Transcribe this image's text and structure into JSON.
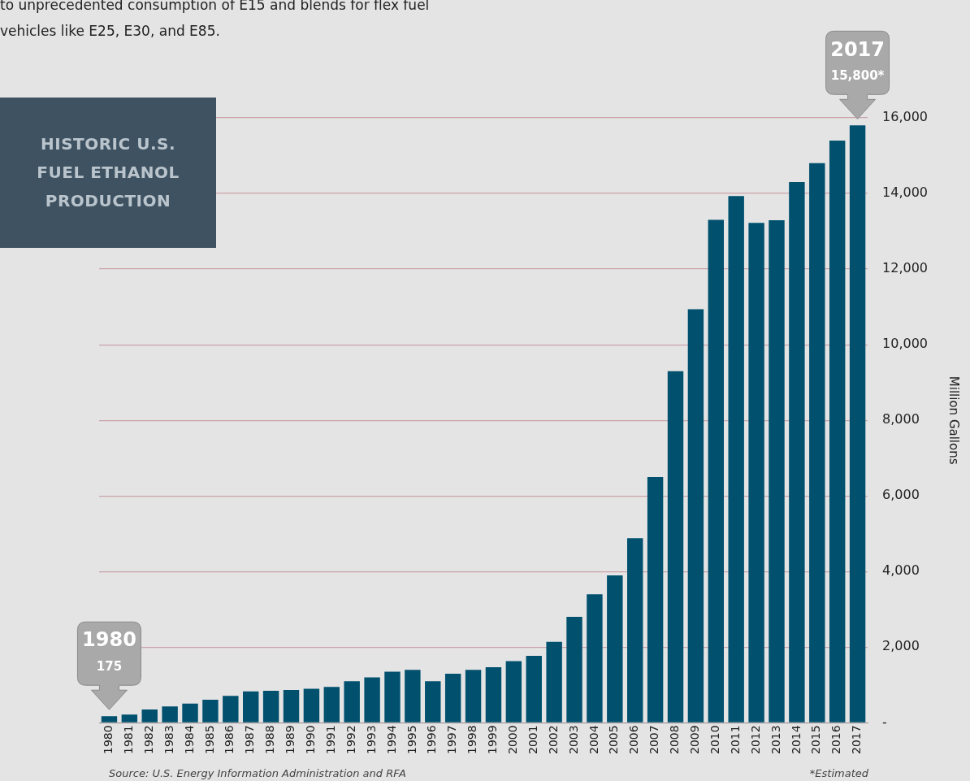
{
  "chart_data": {
    "type": "bar",
    "title": "HISTORIC U.S. FUEL ETHANOL PRODUCTION",
    "ylabel": "Million Gallons",
    "categories": [
      "1980",
      "1981",
      "1982",
      "1983",
      "1984",
      "1985",
      "1986",
      "1987",
      "1988",
      "1989",
      "1990",
      "1991",
      "1992",
      "1993",
      "1994",
      "1995",
      "1996",
      "1997",
      "1998",
      "1999",
      "2000",
      "2001",
      "2002",
      "2003",
      "2004",
      "2005",
      "2006",
      "2007",
      "2008",
      "2009",
      "2010",
      "2011",
      "2012",
      "2013",
      "2014",
      "2015",
      "2016",
      "2017"
    ],
    "values": [
      175,
      215,
      350,
      430,
      510,
      610,
      710,
      830,
      845,
      870,
      900,
      950,
      1100,
      1200,
      1350,
      1400,
      1100,
      1300,
      1400,
      1470,
      1630,
      1770,
      2140,
      2800,
      3400,
      3900,
      4880,
      6500,
      9300,
      10940,
      13300,
      13930,
      13220,
      13290,
      14300,
      14800,
      15400,
      15800
    ],
    "color": "#00506e",
    "ylim": [
      0,
      16000
    ],
    "yticks": [
      {
        "value": 0,
        "label": "-"
      },
      {
        "value": 2000,
        "label": "2,000"
      },
      {
        "value": 4000,
        "label": "4,000"
      },
      {
        "value": 6000,
        "label": "6,000"
      },
      {
        "value": 8000,
        "label": "8,000"
      },
      {
        "value": 10000,
        "label": "10,000"
      },
      {
        "value": 12000,
        "label": "12,000"
      },
      {
        "value": 14000,
        "label": "14,000"
      },
      {
        "value": 16000,
        "label": "16,000"
      }
    ],
    "grid": "y",
    "legend": false,
    "annotations": [
      "to unprecedented consumption of E15 and blends for flex fuel\nvehicles like E25, E30, and E85.",
      {
        "text": "1980\n175",
        "x": "1980",
        "y": 175
      },
      {
        "text": "2017\n15,800*",
        "x": "2017",
        "y": 15800
      },
      "Source: U.S. Energy Information Administration and RFA",
      "*Estimated"
    ]
  }
}
